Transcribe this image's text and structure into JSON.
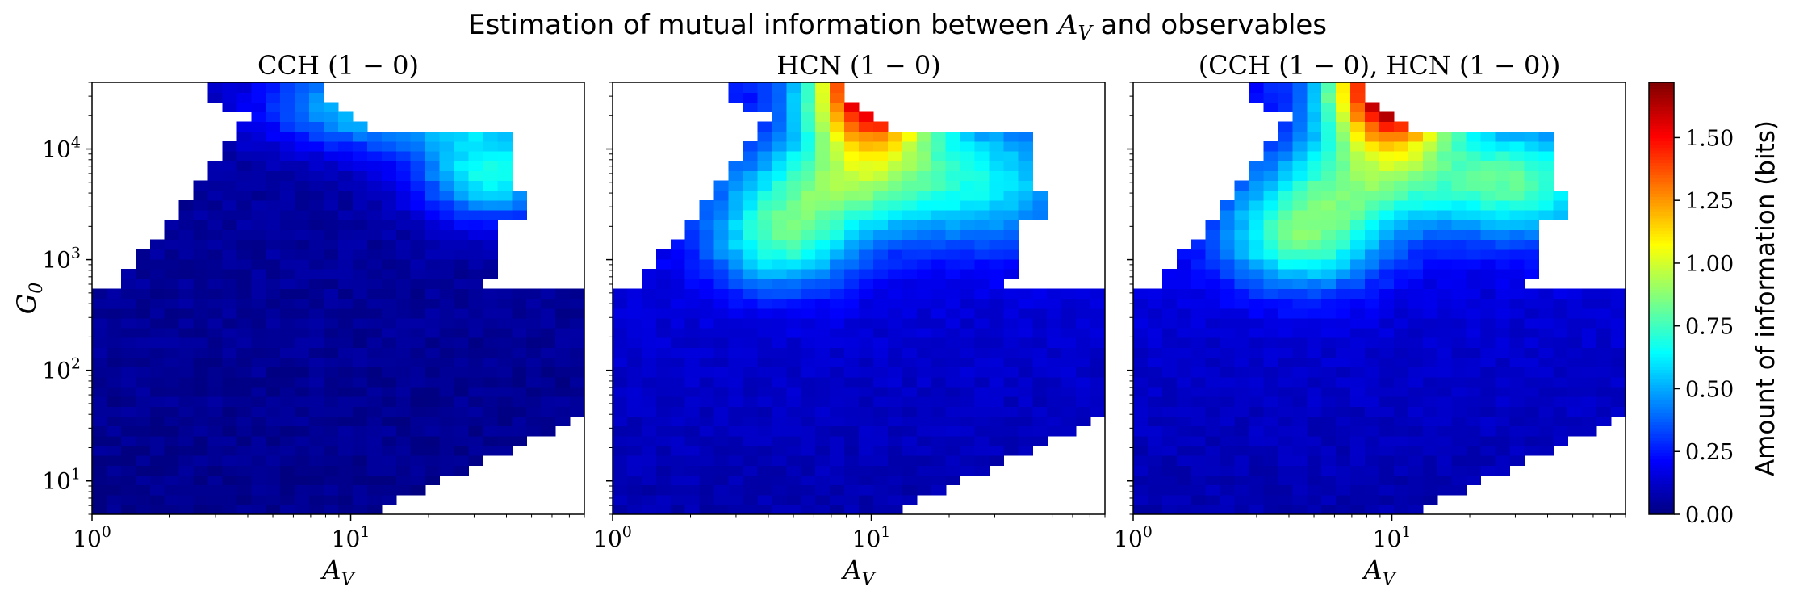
{
  "figure": {
    "suptitle": "Estimation of mutual information between A_V and observables",
    "suptitle_main": "Estimation of mutual information between ",
    "suptitle_var": "A",
    "suptitle_sub": "V",
    "suptitle_tail": " and observables"
  },
  "chart_data": {
    "type": "heatmap",
    "colormap": "jet",
    "xscale": "log",
    "yscale": "log",
    "xlim": [
      1,
      80
    ],
    "ylim": [
      5,
      40000
    ],
    "xlabel": "A_V",
    "ylabel": "G_0",
    "x_tick_labels": [
      "10^0",
      "10^1"
    ],
    "y_tick_labels": [
      "10^1",
      "10^2",
      "10^3",
      "10^4"
    ],
    "colorbar": {
      "label": "Amount of information (bits)",
      "range": [
        0.0,
        1.72
      ],
      "ticks": [
        "0.00",
        "0.25",
        "0.50",
        "0.75",
        "1.00",
        "1.25",
        "1.50"
      ],
      "tick_values": [
        0.0,
        0.25,
        0.5,
        0.75,
        1.0,
        1.25,
        1.5
      ]
    },
    "panels": [
      {
        "title": "CCH (1 − 0)",
        "blobs": [
          {
            "x": 12,
            "y": 25000,
            "amp": 0.55,
            "sx": 0.28,
            "sy": 0.28
          },
          {
            "x": 35,
            "y": 6000,
            "amp": 0.62,
            "sx": 0.2,
            "sy": 0.3
          },
          {
            "x": 30,
            "y": 25000,
            "amp": 0.3,
            "sx": 0.15,
            "sy": 0.2
          }
        ],
        "base": 0.06
      },
      {
        "title": "HCN (1 − 0)",
        "blobs": [
          {
            "x": 10,
            "y": 35000,
            "amp": 1.5,
            "sx": 0.17,
            "sy": 0.4
          },
          {
            "x": 4.5,
            "y": 1500,
            "amp": 0.55,
            "sx": 0.2,
            "sy": 0.32
          },
          {
            "x": 25,
            "y": 5000,
            "amp": 0.45,
            "sx": 0.3,
            "sy": 0.4
          },
          {
            "x": 7,
            "y": 5000,
            "amp": 0.45,
            "sx": 0.25,
            "sy": 0.3
          }
        ],
        "base": 0.22
      },
      {
        "title": "(CCH (1 − 0), HCN (1 − 0))",
        "blobs": [
          {
            "x": 10,
            "y": 35000,
            "amp": 1.62,
            "sx": 0.17,
            "sy": 0.4
          },
          {
            "x": 4.5,
            "y": 1500,
            "amp": 0.6,
            "sx": 0.22,
            "sy": 0.32
          },
          {
            "x": 30,
            "y": 5000,
            "amp": 0.6,
            "sx": 0.25,
            "sy": 0.35
          },
          {
            "x": 7,
            "y": 5000,
            "amp": 0.45,
            "sx": 0.25,
            "sy": 0.3
          }
        ],
        "base": 0.22
      }
    ]
  },
  "colors": {
    "axis": "#000000",
    "background": "#ffffff"
  }
}
